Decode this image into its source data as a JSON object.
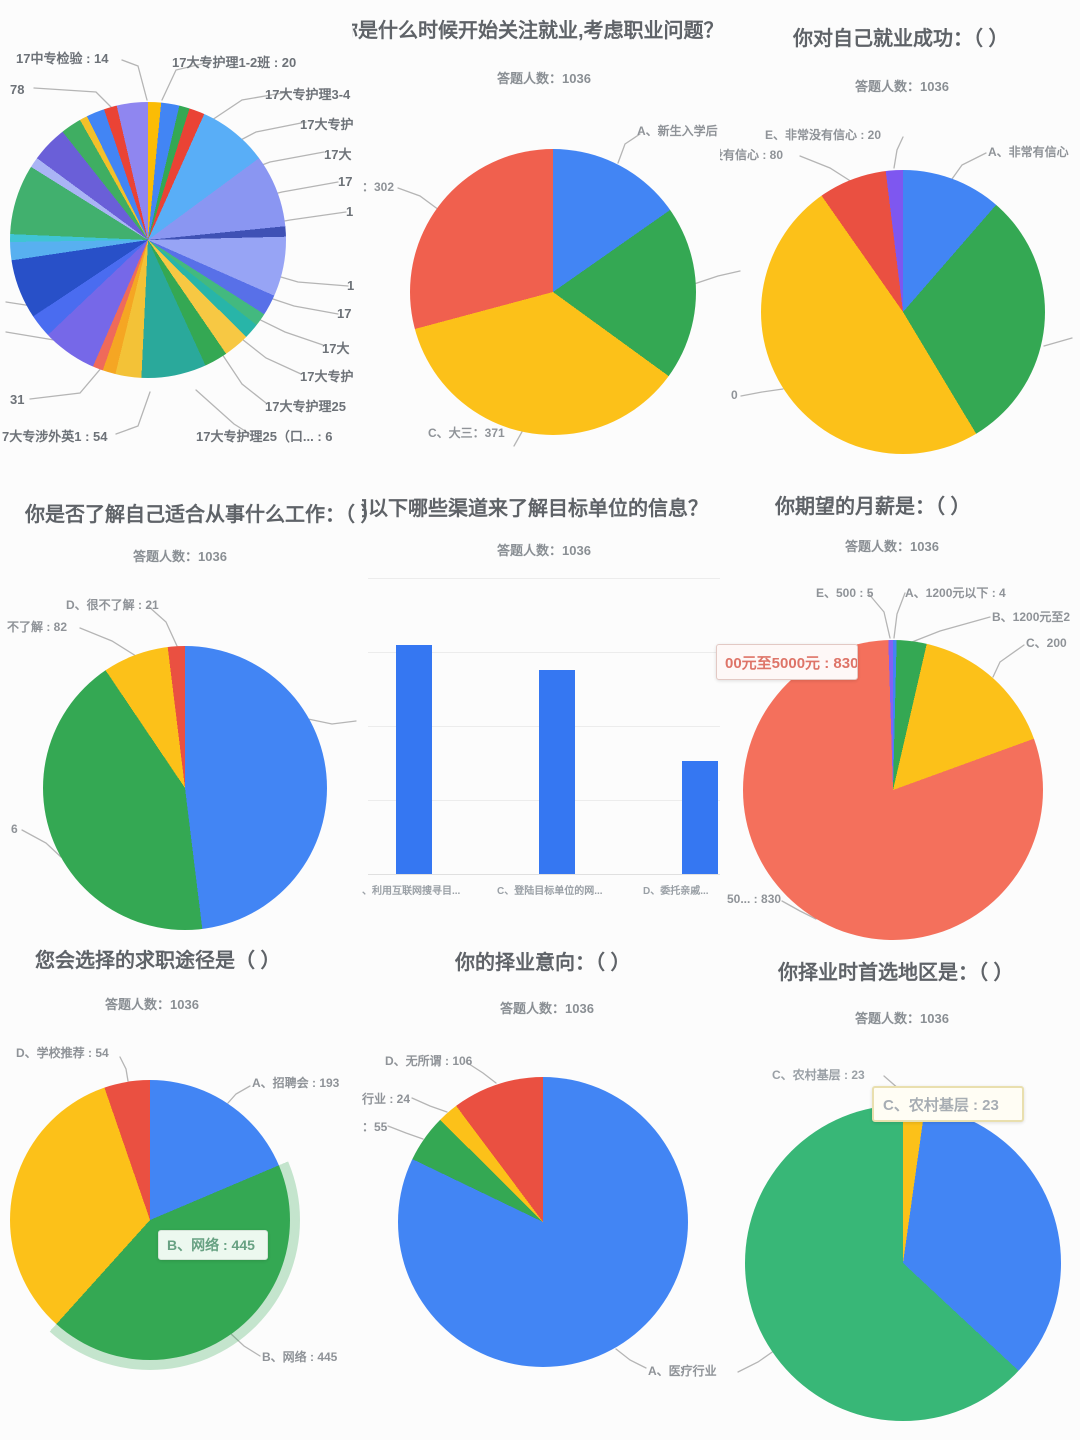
{
  "app": {
    "background": "#fcfcfc"
  },
  "palette": {
    "blue": "#4285f4",
    "green": "#34a853",
    "yellow": "#fcc119",
    "red": "#ea5041",
    "salmon": "#f4705c",
    "purple": "#7e57f0",
    "bar_blue": "#3577f2",
    "green_light": "#38b777"
  },
  "charts": {
    "c1": {
      "chart_data": {
        "type": "pie",
        "description": "Class-distribution pie, title cropped off-screen; many small slices",
        "labels_visible": [
          {
            "label": "17中专检验",
            "value": 14
          },
          {
            "label": "17大专护理1-2班",
            "value": 20
          },
          {
            "label": "78 (cropped)",
            "value": 78
          },
          {
            "label": "17大专护理3-4 (cropped)"
          },
          {
            "label": "17大专护 (cropped)"
          },
          {
            "label": "17大 (cropped)"
          },
          {
            "label": "17 (cropped)"
          },
          {
            "label": "1 (cropped)"
          },
          {
            "label": "17大专护理25 (cropped)"
          },
          {
            "label": "17大专护理25（口...",
            "value": 6
          },
          {
            "label": "31 (cropped)",
            "value": 31
          },
          {
            "label": "7大专涉外英1",
            "value": 54
          }
        ],
        "slices": [
          {
            "color": "#fbbc05",
            "deg": 5
          },
          {
            "color": "#4285f4",
            "deg": 7
          },
          {
            "color": "#34a853",
            "deg": 4
          },
          {
            "color": "#ea4335",
            "deg": 6
          },
          {
            "color": "#59aef7",
            "deg": 27
          },
          {
            "color": "#8a96f2",
            "deg": 28
          },
          {
            "color": "#3f51b5",
            "deg": 4
          },
          {
            "color": "#97a4f5",
            "deg": 23
          },
          {
            "color": "#5870e8",
            "deg": 8
          },
          {
            "color": "#43b97f",
            "deg": 5
          },
          {
            "color": "#28b5a8",
            "deg": 6
          },
          {
            "color": "#f7c843",
            "deg": 10
          },
          {
            "color": "#34a853",
            "deg": 9
          },
          {
            "color": "#2aa99b",
            "deg": 25
          },
          {
            "color": "#f3c237",
            "deg": 10
          },
          {
            "color": "#f5a623",
            "deg": 5
          },
          {
            "color": "#ef6a5a",
            "deg": 4
          },
          {
            "color": "#7668e8",
            "deg": 21
          },
          {
            "color": "#4a6cf0",
            "deg": 9
          },
          {
            "color": "#2850c8",
            "deg": 23
          },
          {
            "color": "#58b0f0",
            "deg": 7
          },
          {
            "color": "#40c4d4",
            "deg": 3
          },
          {
            "color": "#41b06e",
            "deg": 27
          },
          {
            "color": "#aab4f5",
            "deg": 4
          },
          {
            "color": "#6a5fd8",
            "deg": 14
          },
          {
            "color": "#3fae62",
            "deg": 8
          },
          {
            "color": "#f3c02a",
            "deg": 3
          },
          {
            "color": "#4285f4",
            "deg": 7
          },
          {
            "color": "#ea4335",
            "deg": 5
          },
          {
            "color": "#8f86f0",
            "deg": 12
          }
        ]
      },
      "callouts": {
        "l1": "17中专检验 : 14",
        "l2": "17大专护理1-2班 : 20",
        "l3": "78",
        "r1": "17大专护理3-4",
        "r2": "17大专护",
        "r3": "17大",
        "r4": "17",
        "r5": "1",
        "r6": "1",
        "r7": "17",
        "r8": "17大",
        "r9": "17大专护",
        "r10": "17大专护理25",
        "b1": "17大专护理25（口... : 6",
        "l4": "31",
        "l5": "7大专涉外英1 : 54"
      }
    },
    "c2": {
      "title": "你是什么时候开始关注就业,考虑职业问题？",
      "respondents": "答题人数：1036",
      "chart_data": {
        "type": "pie",
        "slices": [
          {
            "label": "A、新生入学后",
            "color": "#4285f4",
            "deg": 55
          },
          {
            "label": "B (label cropped)",
            "color": "#34a853",
            "deg": 71
          },
          {
            "label": "C、大三",
            "value": 371,
            "color": "#fcc119",
            "deg": 129
          },
          {
            "label": "(cropped) : 302",
            "value": 302,
            "color": "#f0604e",
            "deg": 105
          }
        ]
      },
      "callouts": {
        "a": "A、新生入学后",
        "d": "：302",
        "c": "C、大三：371"
      }
    },
    "c3": {
      "title": "你对自己就业成功：（ ）",
      "respondents": "答题人数：1036",
      "chart_data": {
        "type": "pie",
        "slices": [
          {
            "label": "A、非常有信心",
            "color": "#4285f4",
            "deg": 41
          },
          {
            "label": "B (label cropped)",
            "color": "#34a853",
            "deg": 108
          },
          {
            "label": "C (label cropped ...0)",
            "color": "#fcc119",
            "deg": 176
          },
          {
            "label": "没有信心",
            "value": 80,
            "color": "#ea5041",
            "deg": 28
          },
          {
            "label": "E、非常没有信心",
            "value": 20,
            "color": "#7e57f0",
            "deg": 7
          }
        ]
      },
      "callouts": {
        "e": "E、非常没有信心 : 20",
        "d": "没有信心 : 80",
        "a": "A、非常有信心",
        "frag": "0"
      }
    },
    "c4": {
      "title": "你是否了解自己适合从事什么工作：（ ）",
      "respondents": "答题人数：1036",
      "chart_data": {
        "type": "pie",
        "slices": [
          {
            "label": "A (label cropped)",
            "color": "#4285f4",
            "deg": 173
          },
          {
            "label": "B (label cropped ...6)",
            "color": "#34a853",
            "deg": 153
          },
          {
            "label": "不了解",
            "value": 82,
            "color": "#fcc119",
            "deg": 27
          },
          {
            "label": "D、很不了解",
            "value": 21,
            "color": "#ea5041",
            "deg": 7
          }
        ]
      },
      "callouts": {
        "d": "D、很不了解 : 21",
        "c": "、不了解 : 82",
        "frag": "6"
      }
    },
    "c5": {
      "title": "用以下哪些渠道来了解目标单位的信息？（可多选）",
      "respondents": "答题人数：1036",
      "chart_data": {
        "type": "bar",
        "categories": [
          "、利用互联网搜寻目...",
          "C、登陆目标单位的网...",
          "D、委托亲戚..."
        ],
        "values": [
          620,
          550,
          305
        ],
        "values_estimated": true,
        "ylim": [
          0,
          800
        ],
        "grid": true,
        "bar_color": "#3577f2",
        "legend": "none"
      }
    },
    "c6": {
      "title": "你期望的月薪是：（ ）",
      "respondents": "答题人数：1036",
      "chart_data": {
        "type": "pie",
        "slices": [
          {
            "label": "A、1200元以下",
            "value": 4,
            "color": "#4285f4",
            "deg": 1.4
          },
          {
            "label": "B、1200元至2...",
            "color": "#34a853",
            "deg": 11.6
          },
          {
            "label": "C、200...",
            "color": "#fcc119",
            "deg": 57
          },
          {
            "label": "00元至5000元",
            "value": 830,
            "color": "#f4705c",
            "deg": 288.2
          },
          {
            "label": "E、500",
            "value": 5,
            "color": "#8560f5",
            "deg": 1.8
          }
        ]
      },
      "callouts": {
        "e": "E、500 : 5",
        "a": "A、1200元以下 : 4",
        "b": "B、1200元至2",
        "c": "C、200",
        "bottom": "50... : 830"
      },
      "tooltip": "00元至5000元 : 830"
    },
    "c7": {
      "title": "您会选择的求职途径是（ ）",
      "respondents": "答题人数：1036",
      "chart_data": {
        "type": "pie",
        "slices": [
          {
            "label": "A、招聘会",
            "value": 193,
            "color": "#4285f4",
            "deg": 67
          },
          {
            "label": "B、网络",
            "value": 445,
            "color": "#34a853",
            "deg": 155,
            "highlighted": true
          },
          {
            "label": "C (label not shown)",
            "color": "#fcc119",
            "deg": 119
          },
          {
            "label": "D、学校推荐",
            "value": 54,
            "color": "#ea5041",
            "deg": 19
          }
        ]
      },
      "halo": [
        {
          "color": "rgba(0,0,0,0)",
          "deg": 67
        },
        {
          "color": "rgba(52,168,83,0.28)",
          "deg": 155
        },
        {
          "color": "rgba(0,0,0,0)",
          "deg": 138
        }
      ],
      "callouts": {
        "d": "D、学校推荐 : 54",
        "a": "A、招聘会 : 193",
        "b": "B、网络 : 445"
      },
      "tooltip": "B、网络 : 445"
    },
    "c8": {
      "title": "你的择业意向：（ ）",
      "respondents": "答题人数：1036",
      "chart_data": {
        "type": "pie",
        "slices": [
          {
            "label": "A、医疗行业",
            "color": "#4285f4",
            "deg": 295.7
          },
          {
            "label": "(cropped) : 55",
            "value": 55,
            "color": "#34a853",
            "deg": 19.1
          },
          {
            "label": "行业 : 24",
            "value": 24,
            "color": "#fcc119",
            "deg": 8.4
          },
          {
            "label": "D、无所谓",
            "value": 106,
            "color": "#ea5041",
            "deg": 36.8
          }
        ]
      },
      "callouts": {
        "d": "D、无所谓 : 106",
        "c": "行业 : 24",
        "b": "：55",
        "a": "A、医疗行业"
      }
    },
    "c9": {
      "title": "你择业时首选地区是：（ ）",
      "respondents": "答题人数：1036",
      "chart_data": {
        "type": "pie",
        "slices": [
          {
            "label": "C、农村基层",
            "value": 23,
            "color": "#fcc119",
            "deg": 8
          },
          {
            "label": "(label cropped)",
            "color": "#4285f4",
            "deg": 125
          },
          {
            "label": "(label cropped)",
            "color": "#38b777",
            "deg": 227
          }
        ]
      },
      "callouts": {
        "c": "C、农村基层 : 23"
      },
      "tooltip": "C、农村基层 : 23"
    }
  }
}
